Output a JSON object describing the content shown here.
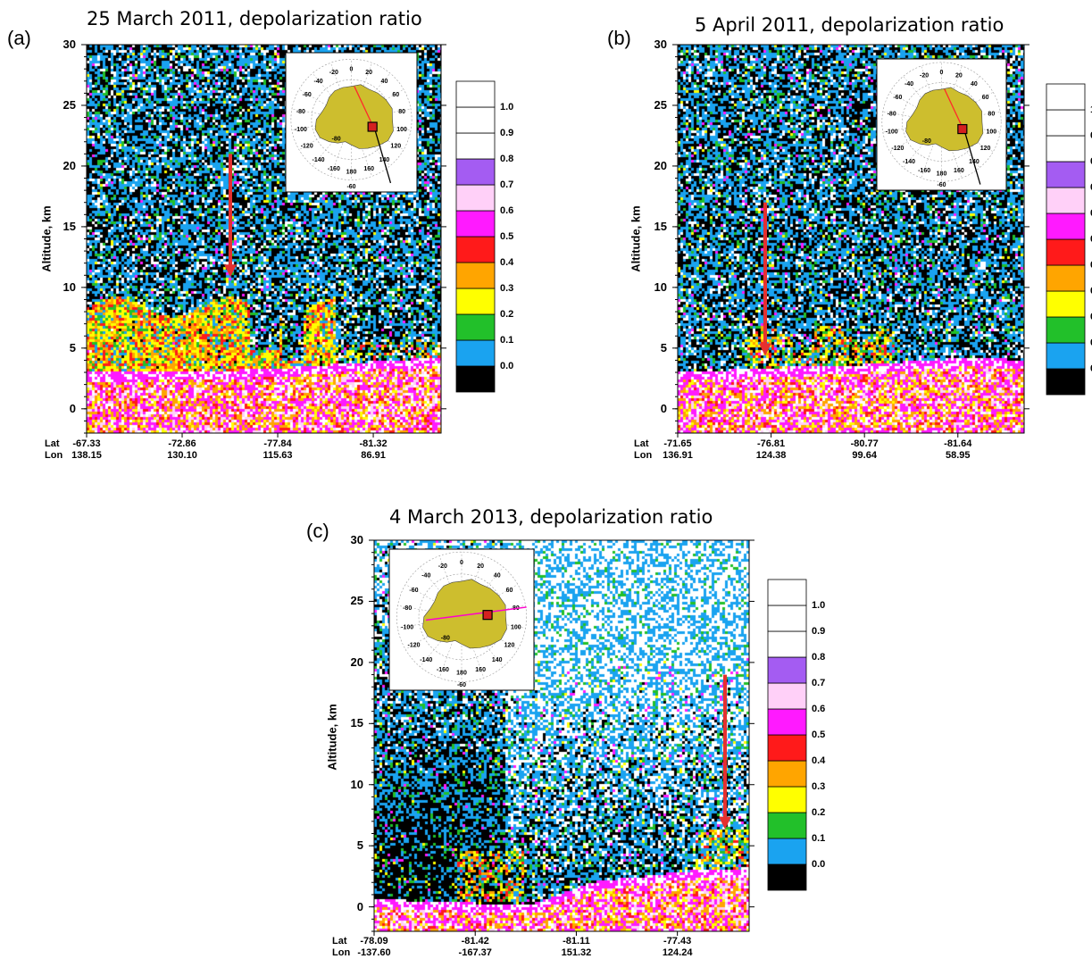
{
  "colors": {
    "scale": [
      "#000000",
      "#1aa3f0",
      "#22c02a",
      "#ffff00",
      "#ffa500",
      "#ff1a1a",
      "#ff1aff",
      "#ffd0f8",
      "#a45cf2",
      "#ffffff",
      "#ffffff",
      "#ffffff"
    ],
    "ground": "#cdbe2e",
    "track_a": "#ff2a2a",
    "track_c": "#ff00cc",
    "arrow": "#e53030"
  },
  "colorbar": {
    "labels": [
      "0.0",
      "0.1",
      "0.2",
      "0.3",
      "0.4",
      "0.5",
      "0.6",
      "0.7",
      "0.8",
      "0.9",
      "1.0"
    ]
  },
  "map_inset": {
    "lon_labels": [
      "-20",
      "0",
      "20",
      "-40",
      "40",
      "-60",
      "60",
      "-80",
      "80",
      "-100",
      "100",
      "-120",
      "120",
      "-140",
      "140",
      "-160",
      "180",
      "160"
    ],
    "lat_labels": [
      "-80",
      "-60"
    ]
  },
  "chart_data": [
    {
      "type": "heatmap",
      "panel": "(a)",
      "title": "25 March 2011, depolarization ratio",
      "ylabel": "Altitude, km",
      "ylim": [
        -2,
        30
      ],
      "yticks": [
        "30",
        "25",
        "20",
        "15",
        "10",
        "5",
        "0"
      ],
      "x_row_labels": [
        "Lat",
        "Lon"
      ],
      "x_positions": [
        {
          "lat": "-67.33",
          "lon": "138.15"
        },
        {
          "lat": "-72.86",
          "lon": "130.10"
        },
        {
          "lat": "-77.84",
          "lon": "115.63"
        },
        {
          "lat": "-81.32",
          "lon": "86.91"
        }
      ],
      "surface_altitude_km": [
        2.8,
        2.8,
        2.9,
        3.0,
        3.2,
        3.5,
        3.8,
        4.0
      ],
      "cloud_top_km": 9.5,
      "arrow_altitude_km": [
        21,
        11
      ]
    },
    {
      "type": "heatmap",
      "panel": "(b)",
      "title": "5 April 2011, depolarization ratio",
      "ylabel": "Altitude, km",
      "ylim": [
        -2,
        30
      ],
      "yticks": [
        "30",
        "25",
        "20",
        "15",
        "10",
        "5",
        "0"
      ],
      "x_row_labels": [
        "Lat",
        "Lon"
      ],
      "x_positions": [
        {
          "lat": "-71.65",
          "lon": "136.91"
        },
        {
          "lat": "-76.81",
          "lon": "124.38"
        },
        {
          "lat": "-80.77",
          "lon": "99.64"
        },
        {
          "lat": "-81.64",
          "lon": "58.95"
        }
      ],
      "surface_altitude_km": [
        2.8,
        3.0,
        3.2,
        3.3,
        3.5,
        3.8,
        4.0,
        3.8
      ],
      "cloud_top_km": 7.0,
      "arrow_altitude_km": [
        17,
        4.5
      ]
    },
    {
      "type": "heatmap",
      "panel": "(c)",
      "title": "4 March 2013, depolarization ratio",
      "ylabel": "Altitude, km",
      "ylim": [
        -2,
        30
      ],
      "yticks": [
        "30",
        "25",
        "20",
        "15",
        "10",
        "5",
        "0"
      ],
      "x_row_labels": [
        "Lat",
        "Lon"
      ],
      "x_positions": [
        {
          "lat": "-78.09",
          "lon": "-137.60"
        },
        {
          "lat": "-81.42",
          "lon": "-167.37"
        },
        {
          "lat": "-81.11",
          "lon": "151.32"
        },
        {
          "lat": "-77.43",
          "lon": "124.24"
        }
      ],
      "surface_altitude_km": [
        0.5,
        0.2,
        0.1,
        0.1,
        1.8,
        2.3,
        2.8,
        3.0
      ],
      "cloud_top_km": 7.0,
      "arrow_altitude_km": [
        19,
        6.5
      ]
    }
  ]
}
